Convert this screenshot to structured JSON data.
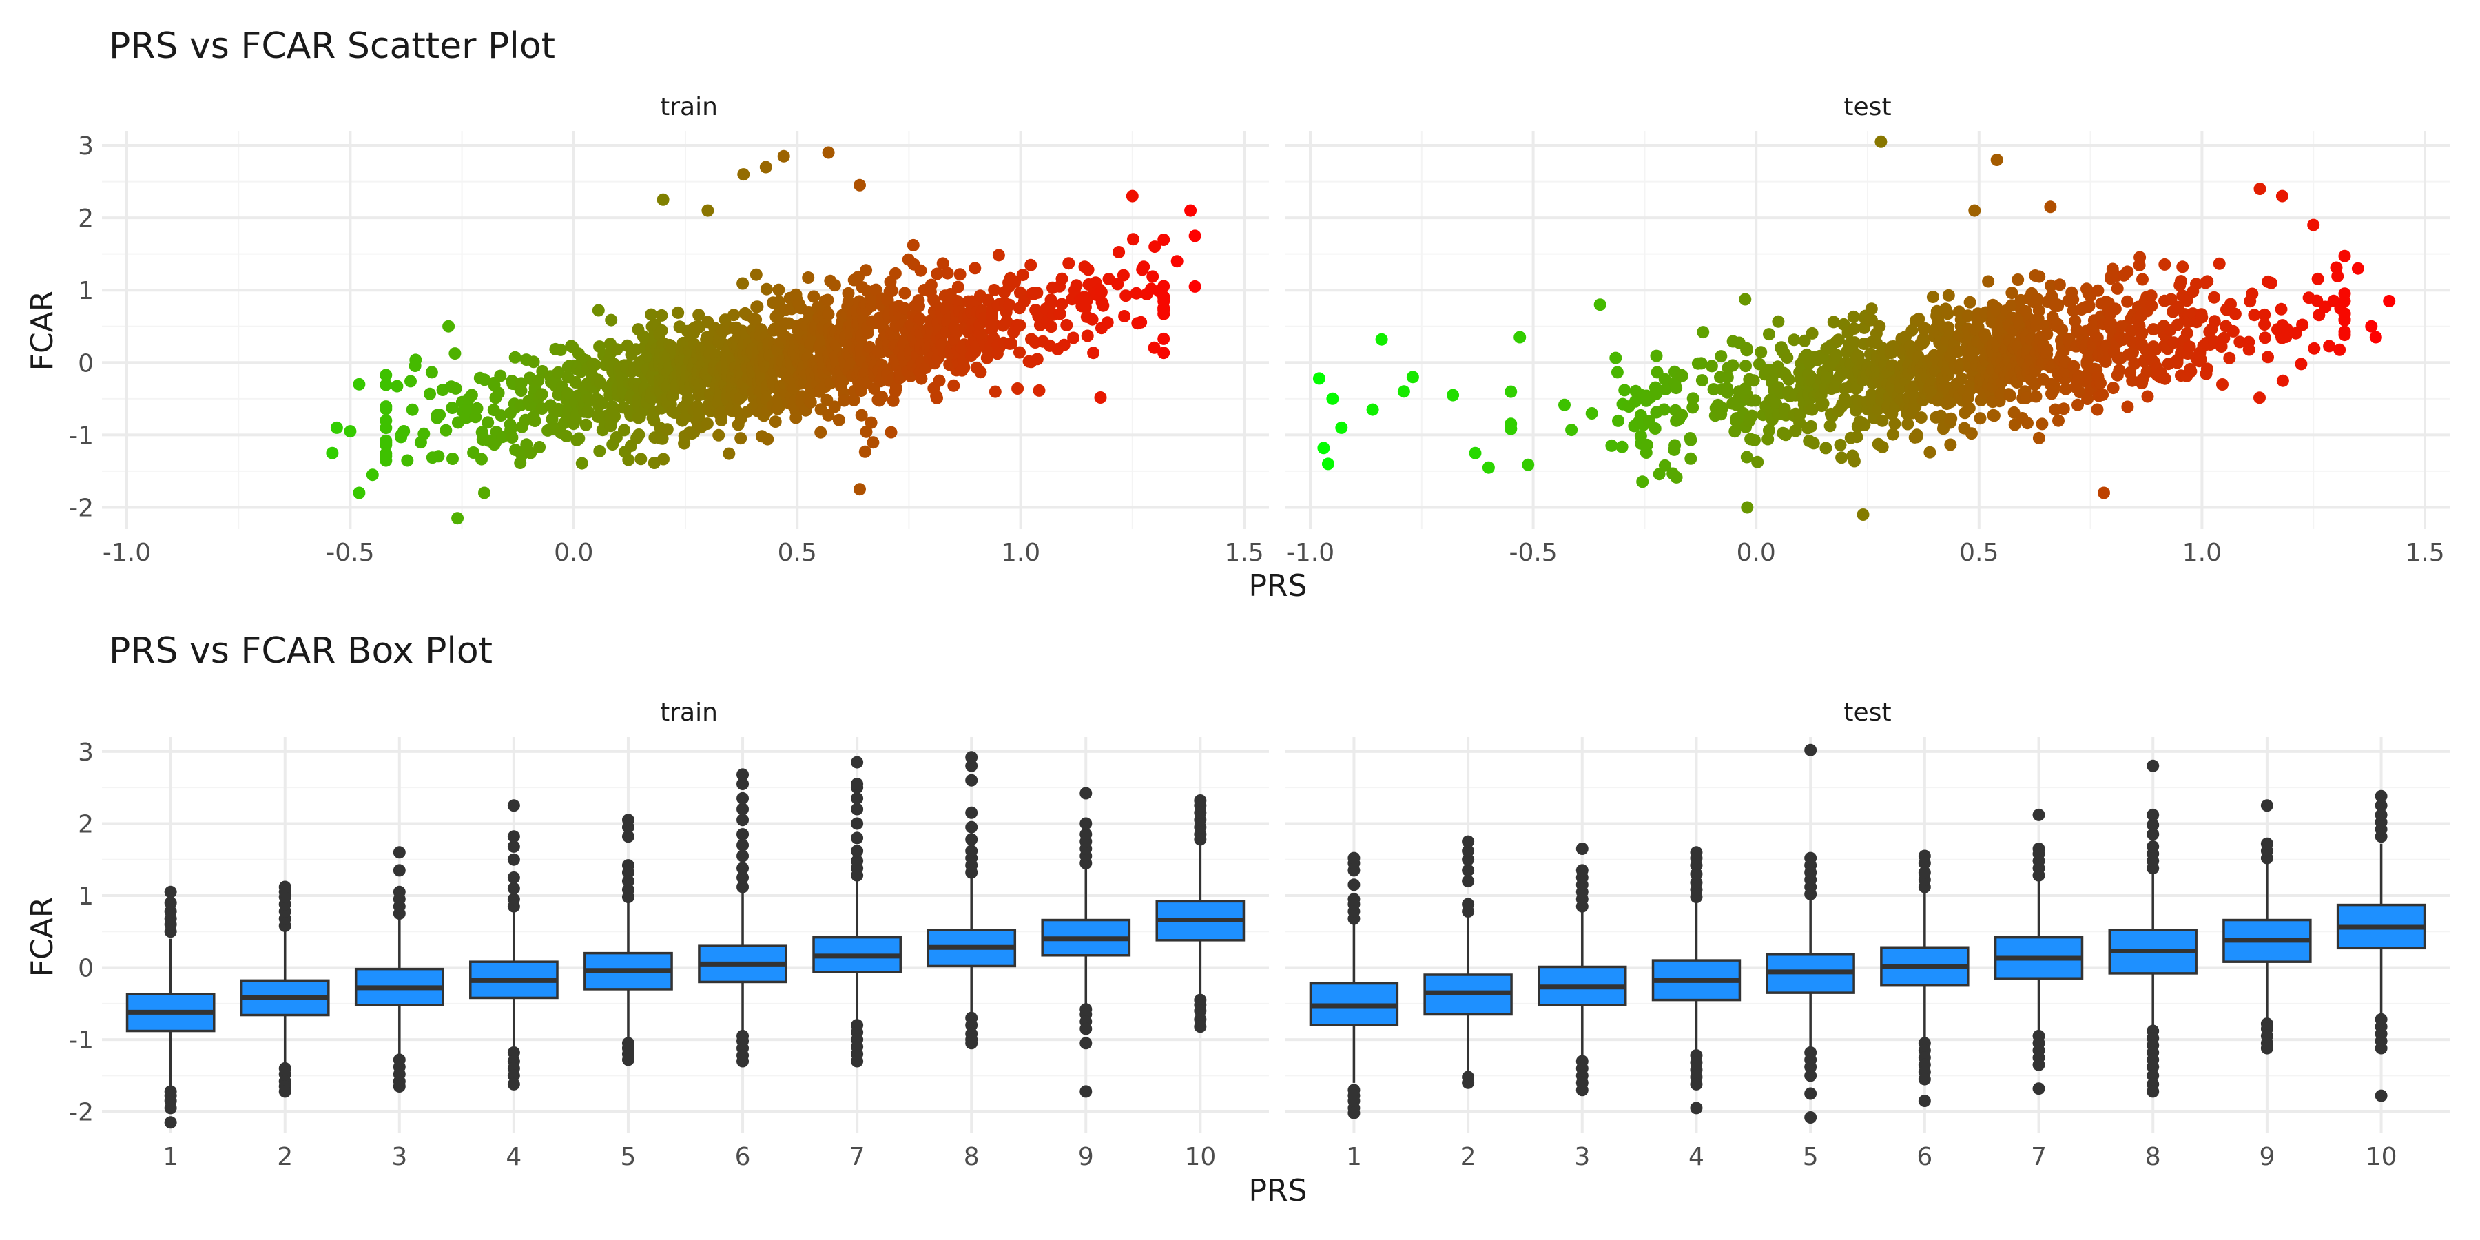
{
  "figure": {
    "scatter_title": "PRS vs FCAR Scatter Plot",
    "box_title": "PRS vs FCAR Box Plot",
    "panel_labels": [
      "train",
      "test"
    ],
    "xlabel": "PRS",
    "ylabel": "FCAR"
  },
  "colors": {
    "gradient_low": "#00ff00",
    "gradient_high": "#ff0000",
    "box_fill": "#1e90ff",
    "box_line": "#333333",
    "outlier": "#333333",
    "grid_major": "#ebebeb",
    "grid_minor": "#f4f4f4",
    "text": "#4d4d4d",
    "title": "#1a1a1a"
  },
  "chart_data": [
    {
      "type": "scatter",
      "title": "PRS vs FCAR Scatter Plot",
      "xlabel": "PRS",
      "ylabel": "FCAR",
      "facets": [
        "train",
        "test"
      ],
      "xlim": [
        -1.0,
        1.5
      ],
      "ylim": [
        -2.3,
        3.2
      ],
      "x_ticks": [
        "-1.0",
        "-0.5",
        "0.0",
        "0.5",
        "1.0",
        "1.5"
      ],
      "y_ticks": [
        "-2",
        "-1",
        "0",
        "1",
        "2",
        "3"
      ],
      "color_scale": {
        "variable": "PRS",
        "low": "#00ff00",
        "high": "#ff0000",
        "from": -1.0,
        "to": 1.4
      },
      "grid": true,
      "legend": "none",
      "trend": {
        "train": {
          "slope": 1.05,
          "intercept": -0.45,
          "sd": 0.42
        },
        "test": {
          "slope": 0.95,
          "intercept": -0.45,
          "sd": 0.45
        }
      },
      "notable_points": {
        "train": [
          {
            "x": -0.54,
            "y": -1.25
          },
          {
            "x": -0.53,
            "y": -0.9
          },
          {
            "x": -0.5,
            "y": -0.95
          },
          {
            "x": -0.48,
            "y": -0.3
          },
          {
            "x": -0.48,
            "y": -1.8
          },
          {
            "x": -0.45,
            "y": -1.55
          },
          {
            "x": -0.28,
            "y": 0.5
          },
          {
            "x": -0.26,
            "y": -2.15
          },
          {
            "x": -0.2,
            "y": -1.8
          },
          {
            "x": 0.2,
            "y": 2.25
          },
          {
            "x": 0.3,
            "y": 2.1
          },
          {
            "x": 0.38,
            "y": 2.6
          },
          {
            "x": 0.43,
            "y": 2.7
          },
          {
            "x": 0.47,
            "y": 2.85
          },
          {
            "x": 0.57,
            "y": 2.9
          },
          {
            "x": 0.64,
            "y": 2.45
          },
          {
            "x": 0.64,
            "y": -1.75
          },
          {
            "x": 1.25,
            "y": 2.3
          },
          {
            "x": 1.3,
            "y": 1.6
          },
          {
            "x": 1.38,
            "y": 2.1
          },
          {
            "x": 1.39,
            "y": 1.75
          },
          {
            "x": 1.39,
            "y": 1.05
          },
          {
            "x": 1.35,
            "y": 1.4
          }
        ],
        "test": [
          {
            "x": -0.98,
            "y": -0.22
          },
          {
            "x": -0.97,
            "y": -1.18
          },
          {
            "x": -0.96,
            "y": -1.4
          },
          {
            "x": -0.95,
            "y": -0.5
          },
          {
            "x": -0.93,
            "y": -0.9
          },
          {
            "x": -0.86,
            "y": -0.65
          },
          {
            "x": -0.84,
            "y": 0.32
          },
          {
            "x": -0.79,
            "y": -0.4
          },
          {
            "x": -0.77,
            "y": -0.2
          },
          {
            "x": -0.68,
            "y": -0.45
          },
          {
            "x": -0.63,
            "y": -1.25
          },
          {
            "x": -0.6,
            "y": -1.45
          },
          {
            "x": -0.53,
            "y": 0.35
          },
          {
            "x": -0.35,
            "y": 0.8
          },
          {
            "x": -0.02,
            "y": -2.0
          },
          {
            "x": 0.24,
            "y": -2.1
          },
          {
            "x": 0.28,
            "y": 3.05
          },
          {
            "x": 0.49,
            "y": 2.1
          },
          {
            "x": 0.54,
            "y": 2.8
          },
          {
            "x": 0.66,
            "y": 2.15
          },
          {
            "x": 0.78,
            "y": -1.8
          },
          {
            "x": 1.13,
            "y": 2.4
          },
          {
            "x": 1.18,
            "y": 2.3
          },
          {
            "x": 1.25,
            "y": 1.9
          },
          {
            "x": 1.35,
            "y": 1.3
          },
          {
            "x": 1.38,
            "y": 0.5
          },
          {
            "x": 1.42,
            "y": 0.85
          },
          {
            "x": 1.39,
            "y": 0.35
          }
        ]
      }
    },
    {
      "type": "box",
      "title": "PRS vs FCAR Box Plot",
      "xlabel": "PRS",
      "ylabel": "FCAR",
      "facets": [
        "train",
        "test"
      ],
      "categories": [
        "1",
        "2",
        "3",
        "4",
        "5",
        "6",
        "7",
        "8",
        "9",
        "10"
      ],
      "ylim": [
        -2.3,
        3.2
      ],
      "y_ticks": [
        "-2",
        "-1",
        "0",
        "1",
        "2",
        "3"
      ],
      "grid": true,
      "series": [
        {
          "facet": "train",
          "boxes": [
            {
              "q1": -0.88,
              "median": -0.62,
              "q3": -0.37,
              "whisker_low": -1.65,
              "whisker_high": 0.4,
              "outliers": [
                -1.72,
                -1.78,
                -1.85,
                -1.95,
                -2.15,
                0.5,
                0.6,
                0.68,
                0.78,
                0.9,
                1.05
              ]
            },
            {
              "q1": -0.66,
              "median": -0.42,
              "q3": -0.18,
              "whisker_low": -1.35,
              "whisker_high": 0.5,
              "outliers": [
                -1.4,
                -1.48,
                -1.58,
                -1.65,
                -1.72,
                0.58,
                0.68,
                0.78,
                0.88,
                0.98,
                1.05,
                1.12
              ]
            },
            {
              "q1": -0.52,
              "median": -0.28,
              "q3": -0.02,
              "whisker_low": -1.22,
              "whisker_high": 0.68,
              "outliers": [
                -1.28,
                -1.38,
                -1.48,
                -1.58,
                -1.65,
                0.75,
                0.85,
                0.95,
                1.05,
                1.35,
                1.6
              ]
            },
            {
              "q1": -0.42,
              "median": -0.18,
              "q3": 0.08,
              "whisker_low": -1.12,
              "whisker_high": 0.78,
              "outliers": [
                -1.18,
                -1.3,
                -1.4,
                -1.5,
                -1.62,
                0.85,
                0.95,
                1.1,
                1.25,
                1.5,
                1.68,
                1.82,
                2.25
              ]
            },
            {
              "q1": -0.3,
              "median": -0.04,
              "q3": 0.2,
              "whisker_low": -1.0,
              "whisker_high": 0.92,
              "outliers": [
                -1.05,
                -1.12,
                -1.2,
                -1.28,
                0.98,
                1.08,
                1.2,
                1.32,
                1.42,
                1.82,
                1.95,
                2.05
              ]
            },
            {
              "q1": -0.2,
              "median": 0.05,
              "q3": 0.3,
              "whisker_low": -0.9,
              "whisker_high": 1.05,
              "outliers": [
                -0.95,
                -1.02,
                -1.12,
                -1.22,
                -1.3,
                1.12,
                1.25,
                1.38,
                1.55,
                1.7,
                1.85,
                2.05,
                2.2,
                2.35,
                2.55,
                2.68
              ]
            },
            {
              "q1": -0.06,
              "median": 0.16,
              "q3": 0.42,
              "whisker_low": -0.75,
              "whisker_high": 1.2,
              "outliers": [
                -0.8,
                -0.9,
                -1.0,
                -1.1,
                -1.2,
                -1.3,
                1.28,
                1.38,
                1.48,
                1.62,
                1.8,
                2.0,
                2.2,
                2.35,
                2.5,
                2.55,
                2.85
              ]
            },
            {
              "q1": 0.02,
              "median": 0.28,
              "q3": 0.52,
              "whisker_low": -0.62,
              "whisker_high": 1.25,
              "outliers": [
                -0.7,
                -0.8,
                -0.92,
                -1.0,
                -1.05,
                1.32,
                1.42,
                1.52,
                1.62,
                1.78,
                1.95,
                2.15,
                2.6,
                2.8,
                2.92
              ]
            },
            {
              "q1": 0.17,
              "median": 0.4,
              "q3": 0.66,
              "whisker_low": -0.5,
              "whisker_high": 1.38,
              "outliers": [
                -0.58,
                -0.65,
                -0.75,
                -0.85,
                -1.05,
                -1.72,
                1.45,
                1.55,
                1.65,
                1.75,
                1.85,
                2.0,
                2.42
              ]
            },
            {
              "q1": 0.38,
              "median": 0.66,
              "q3": 0.92,
              "whisker_low": -0.38,
              "whisker_high": 1.72,
              "outliers": [
                -0.45,
                -0.52,
                -0.6,
                -0.72,
                -0.82,
                1.78,
                1.85,
                1.95,
                2.05,
                2.15,
                2.25,
                2.32
              ]
            }
          ]
        },
        {
          "facet": "test",
          "boxes": [
            {
              "q1": -0.8,
              "median": -0.53,
              "q3": -0.22,
              "whisker_low": -1.6,
              "whisker_high": 0.6,
              "outliers": [
                -1.7,
                -1.78,
                -1.85,
                -1.95,
                -2.02,
                0.68,
                0.78,
                0.88,
                0.95,
                1.15,
                1.35,
                1.45,
                1.52
              ]
            },
            {
              "q1": -0.65,
              "median": -0.35,
              "q3": -0.1,
              "whisker_low": -1.45,
              "whisker_high": 0.7,
              "outliers": [
                -1.52,
                -1.6,
                0.78,
                0.88,
                1.2,
                1.35,
                1.5,
                1.62,
                1.75
              ]
            },
            {
              "q1": -0.52,
              "median": -0.27,
              "q3": 0.01,
              "whisker_low": -1.22,
              "whisker_high": 0.8,
              "outliers": [
                -1.3,
                -1.4,
                -1.5,
                -1.6,
                -1.7,
                0.85,
                0.95,
                1.05,
                1.15,
                1.25,
                1.35,
                1.65
              ]
            },
            {
              "q1": -0.45,
              "median": -0.18,
              "q3": 0.1,
              "whisker_low": -1.15,
              "whisker_high": 0.9,
              "outliers": [
                -1.22,
                -1.32,
                -1.42,
                -1.52,
                -1.62,
                -1.95,
                0.98,
                1.08,
                1.18,
                1.3,
                1.42,
                1.52,
                1.6
              ]
            },
            {
              "q1": -0.35,
              "median": -0.06,
              "q3": 0.18,
              "whisker_low": -1.1,
              "whisker_high": 0.95,
              "outliers": [
                -1.18,
                -1.28,
                -1.38,
                -1.5,
                -1.75,
                -2.08,
                1.02,
                1.12,
                1.22,
                1.32,
                1.42,
                1.52,
                3.02
              ]
            },
            {
              "q1": -0.25,
              "median": 0.01,
              "q3": 0.28,
              "whisker_low": -1.0,
              "whisker_high": 1.05,
              "outliers": [
                -1.05,
                -1.15,
                -1.25,
                -1.35,
                -1.45,
                -1.55,
                -1.85,
                1.12,
                1.22,
                1.32,
                1.45,
                1.55
              ]
            },
            {
              "q1": -0.15,
              "median": 0.13,
              "q3": 0.42,
              "whisker_low": -0.9,
              "whisker_high": 1.2,
              "outliers": [
                -0.95,
                -1.05,
                -1.15,
                -1.25,
                -1.35,
                -1.68,
                1.28,
                1.38,
                1.48,
                1.58,
                1.65,
                2.12
              ]
            },
            {
              "q1": -0.08,
              "median": 0.23,
              "q3": 0.52,
              "whisker_low": -0.82,
              "whisker_high": 1.3,
              "outliers": [
                -0.88,
                -0.98,
                -1.08,
                -1.18,
                -1.28,
                -1.38,
                -1.5,
                -1.62,
                -1.72,
                1.38,
                1.48,
                1.58,
                1.68,
                1.85,
                1.98,
                2.12,
                2.8
              ]
            },
            {
              "q1": 0.08,
              "median": 0.38,
              "q3": 0.66,
              "whisker_low": -0.72,
              "whisker_high": 1.45,
              "outliers": [
                -0.78,
                -0.85,
                -0.95,
                -1.05,
                -1.12,
                1.52,
                1.62,
                1.72,
                2.25
              ]
            },
            {
              "q1": 0.27,
              "median": 0.56,
              "q3": 0.87,
              "whisker_low": -0.65,
              "whisker_high": 1.72,
              "outliers": [
                -0.72,
                -0.82,
                -0.92,
                -1.02,
                -1.12,
                -1.78,
                1.82,
                1.92,
                2.02,
                2.12,
                2.25,
                2.38
              ]
            }
          ]
        }
      ]
    }
  ]
}
